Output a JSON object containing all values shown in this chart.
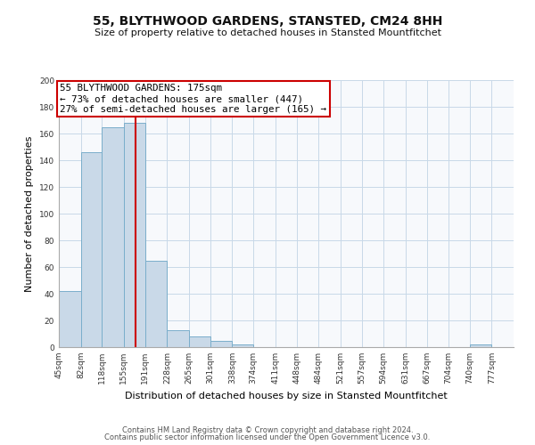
{
  "title": "55, BLYTHWOOD GARDENS, STANSTED, CM24 8HH",
  "subtitle": "Size of property relative to detached houses in Stansted Mountfitchet",
  "xlabel": "Distribution of detached houses by size in Stansted Mountfitchet",
  "ylabel": "Number of detached properties",
  "bar_labels": [
    "45sqm",
    "82sqm",
    "118sqm",
    "155sqm",
    "191sqm",
    "228sqm",
    "265sqm",
    "301sqm",
    "338sqm",
    "374sqm",
    "411sqm",
    "448sqm",
    "484sqm",
    "521sqm",
    "557sqm",
    "594sqm",
    "631sqm",
    "667sqm",
    "704sqm",
    "740sqm",
    "777sqm"
  ],
  "bar_values": [
    42,
    146,
    165,
    168,
    65,
    13,
    8,
    5,
    2,
    0,
    0,
    0,
    0,
    0,
    0,
    0,
    0,
    0,
    0,
    2,
    0
  ],
  "bar_color": "#c9d9e8",
  "bar_edge_color": "#7aaecb",
  "vline_x": 175,
  "annotation_title": "55 BLYTHWOOD GARDENS: 175sqm",
  "annotation_line1": "← 73% of detached houses are smaller (447)",
  "annotation_line2": "27% of semi-detached houses are larger (165) →",
  "vline_color": "#cc0000",
  "annotation_box_edge": "#cc0000",
  "annotation_box_face": "#ffffff",
  "ylim": [
    0,
    200
  ],
  "yticks": [
    0,
    20,
    40,
    60,
    80,
    100,
    120,
    140,
    160,
    180,
    200
  ],
  "footer1": "Contains HM Land Registry data © Crown copyright and database right 2024.",
  "footer2": "Contains public sector information licensed under the Open Government Licence v3.0.",
  "bin_edges": [
    45,
    82,
    118,
    155,
    191,
    228,
    265,
    301,
    338,
    374,
    411,
    448,
    484,
    521,
    557,
    594,
    631,
    667,
    704,
    740,
    777,
    814
  ],
  "bg_color": "#f7f9fc",
  "grid_color": "#c8d8e8"
}
